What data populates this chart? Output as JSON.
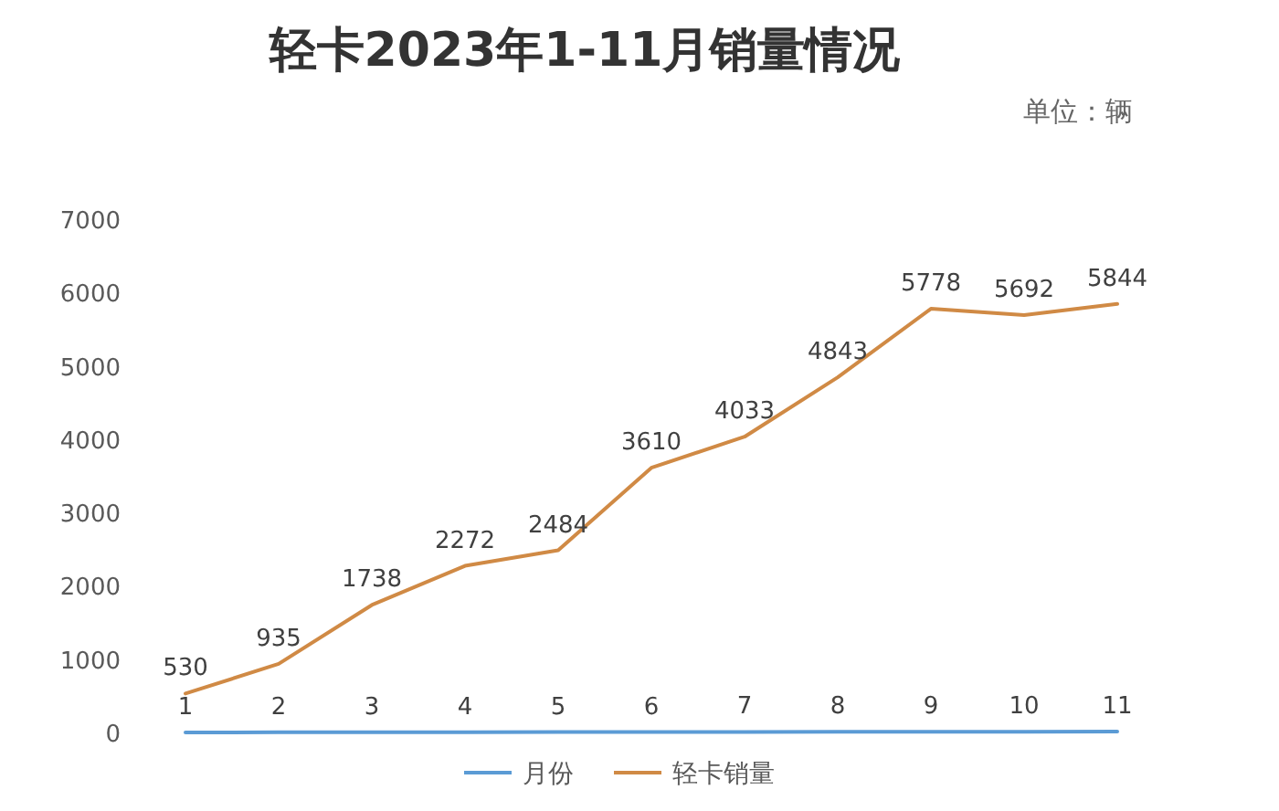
{
  "chart_data": {
    "type": "line",
    "title": "轻卡2023年1-11月销量情况",
    "subtitle": "单位：辆",
    "categories": [
      null,
      null,
      null,
      null,
      null,
      null,
      null,
      null,
      null,
      null,
      null
    ],
    "series": [
      {
        "name": "月份",
        "color": "#5b9bd5",
        "values": [
          1,
          2,
          3,
          4,
          5,
          6,
          7,
          8,
          9,
          10,
          11
        ]
      },
      {
        "name": "轻卡销量",
        "color": "#d08a45",
        "values": [
          530,
          935,
          1738,
          2272,
          2484,
          3610,
          4033,
          4843,
          5778,
          5692,
          5844
        ]
      }
    ],
    "ylim": [
      0,
      7000
    ],
    "yticks": [
      0,
      1000,
      2000,
      3000,
      4000,
      5000,
      6000,
      7000
    ],
    "data_labels": true,
    "legend": "bottom",
    "grid": false,
    "marker": "none",
    "line_style": "solid"
  }
}
